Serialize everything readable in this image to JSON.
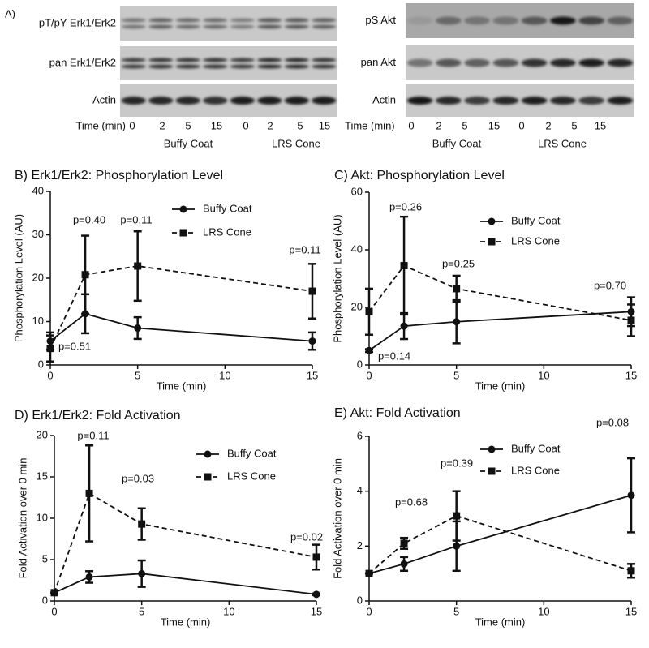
{
  "panel_label": "A)",
  "blots": [
    {
      "rows": [
        "pT/pY Erk1/Erk2",
        "pan Erk1/Erk2",
        "Actin"
      ],
      "time_label": "Time (min)",
      "lanes": [
        "0",
        "2",
        "5",
        "15",
        "0",
        "2",
        "5",
        "15"
      ],
      "groups": [
        "Buffy Coat",
        "LRS Cone"
      ]
    },
    {
      "rows": [
        "pS Akt",
        "pan Akt",
        "Actin"
      ],
      "time_label": "Time (min)",
      "lanes": [
        "0",
        "2",
        "5",
        "15",
        "0",
        "2",
        "5",
        "15"
      ],
      "groups": [
        "Buffy Coat",
        "LRS Cone"
      ]
    }
  ],
  "chart_data": [
    {
      "type": "line",
      "title": "B) Erk1/Erk2: Phosphorylation Level",
      "xlabel": "Time (min)",
      "ylabel": "Phosphorylation Level (AU)",
      "x": [
        0,
        2,
        5,
        15
      ],
      "xlim": [
        0,
        15
      ],
      "xticks": [
        0,
        5,
        10,
        15
      ],
      "ylim": [
        0,
        40
      ],
      "yticks": [
        0,
        10,
        20,
        30,
        40
      ],
      "series": [
        {
          "name": "Buffy Coat",
          "color": "#111111",
          "linestyle": "solid",
          "marker": "circle",
          "values": [
            5.5,
            11.8,
            8.5,
            5.5
          ],
          "errors": [
            2,
            4.5,
            2.5,
            2
          ]
        },
        {
          "name": "LRS Cone",
          "color": "#111111",
          "linestyle": "dashed",
          "marker": "square",
          "values": [
            3.8,
            20.8,
            22.8,
            17
          ],
          "errors": [
            3,
            9,
            8,
            6.3
          ]
        }
      ],
      "annotations": [
        "p=0.40",
        "p=0.11",
        "p=0.11",
        "p=0.51"
      ],
      "legend": "upper right"
    },
    {
      "type": "line",
      "title": "C) Akt: Phosphorylation Level",
      "xlabel": "Time (min)",
      "ylabel": "Phosphorylation Level (AU)",
      "x": [
        0,
        2,
        5,
        15
      ],
      "xlim": [
        0,
        15
      ],
      "xticks": [
        0,
        5,
        10,
        15
      ],
      "ylim": [
        0,
        60
      ],
      "yticks": [
        0,
        20,
        40,
        60
      ],
      "series": [
        {
          "name": "Buffy Coat",
          "color": "#111111",
          "linestyle": "solid",
          "marker": "circle",
          "values": [
            5,
            13.5,
            15,
            18.5
          ],
          "errors": [
            0.5,
            4.5,
            7.5,
            5
          ]
        },
        {
          "name": "LRS Cone",
          "color": "#111111",
          "linestyle": "dashed",
          "marker": "square",
          "values": [
            18.5,
            34.5,
            26.5,
            15.5
          ],
          "errors": [
            8,
            17,
            4.5,
            5.5
          ]
        }
      ],
      "annotations": [
        "p=0.26",
        "p=0.25",
        "p=0.70",
        "p=0.14"
      ],
      "legend": "upper right"
    },
    {
      "type": "line",
      "title": "D) Erk1/Erk2: Fold Activation",
      "xlabel": "Time (min)",
      "ylabel": "Fold Activation over 0 min",
      "x": [
        0,
        2,
        5,
        15
      ],
      "xlim": [
        0,
        15
      ],
      "xticks": [
        0,
        5,
        10,
        15
      ],
      "ylim": [
        0,
        20
      ],
      "yticks": [
        0,
        5,
        10,
        15,
        20
      ],
      "series": [
        {
          "name": "Buffy Coat",
          "color": "#111111",
          "linestyle": "solid",
          "marker": "circle",
          "values": [
            1,
            2.9,
            3.3,
            0.8
          ],
          "errors": [
            0,
            0.7,
            1.6,
            0.1
          ]
        },
        {
          "name": "LRS Cone",
          "color": "#111111",
          "linestyle": "dashed",
          "marker": "square",
          "values": [
            1,
            13,
            9.3,
            5.3
          ],
          "errors": [
            0,
            5.8,
            1.9,
            1.5
          ]
        }
      ],
      "annotations": [
        "p=0.11",
        "p=0.03",
        "p=0.02"
      ],
      "legend": "upper right"
    },
    {
      "type": "line",
      "title": "E) Akt: Fold Activation",
      "xlabel": "Time (min)",
      "ylabel": "Fold Activation over 0 min",
      "x": [
        0,
        2,
        5,
        15
      ],
      "xlim": [
        0,
        15
      ],
      "xticks": [
        0,
        5,
        10,
        15
      ],
      "ylim": [
        0,
        6
      ],
      "yticks": [
        0,
        2,
        4,
        6
      ],
      "series": [
        {
          "name": "Buffy Coat",
          "color": "#111111",
          "linestyle": "solid",
          "marker": "circle",
          "values": [
            1,
            1.35,
            2,
            3.85
          ],
          "errors": [
            0,
            0.25,
            0.9,
            1.35
          ]
        },
        {
          "name": "LRS Cone",
          "color": "#111111",
          "linestyle": "dashed",
          "marker": "square",
          "values": [
            1,
            2.1,
            3.1,
            1.1
          ],
          "errors": [
            0,
            0.2,
            0.9,
            0.25
          ]
        }
      ],
      "annotations": [
        "p=0.68",
        "p=0.39",
        "p=0.08"
      ],
      "legend": "upper right"
    }
  ]
}
